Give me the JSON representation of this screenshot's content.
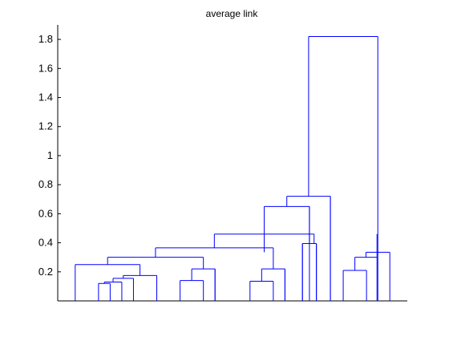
{
  "chart_data": {
    "type": "dendrogram",
    "title": "average link",
    "xlabel": "",
    "ylabel": "",
    "ylim": [
      0,
      1.9
    ],
    "y_ticks": [
      "0.2",
      "0.4",
      "0.6",
      "0.8",
      "1",
      "1.2",
      "1.4",
      "1.6",
      "1.8"
    ],
    "y_tick_values": [
      0.2,
      0.4,
      0.6,
      0.8,
      1.0,
      1.2,
      1.4,
      1.6,
      1.8
    ],
    "x_range": [
      0,
      30
    ],
    "leaves": [
      1.5,
      3.5,
      4.5,
      5.5,
      6.5,
      8.5,
      10.5,
      12.5,
      13.5,
      14.5,
      16.5,
      18.5,
      20.5,
      22.5,
      24.5,
      26.5,
      28.5
    ],
    "merges": [
      {
        "x1": 3.5,
        "x2": 4.5,
        "y": 0.12
      },
      {
        "x1": 4.0,
        "x2": 5.5,
        "y": 0.13
      },
      {
        "x1": 4.75,
        "x2": 6.5,
        "y": 0.155
      },
      {
        "x1": 5.625,
        "x2": 8.5,
        "y": 0.175
      },
      {
        "x1": 1.5,
        "x2": 7.06,
        "y": 0.25
      },
      {
        "x1": 10.5,
        "x2": 12.5,
        "y": 0.14
      },
      {
        "x1": 11.5,
        "x2": 13.5,
        "y": 0.22
      },
      {
        "x1": 4.28,
        "x2": 12.5,
        "y": 0.3
      },
      {
        "x1": 16.5,
        "x2": 18.5,
        "y": 0.135
      },
      {
        "x1": 17.5,
        "x2": 19.5,
        "y": 0.22
      },
      {
        "x1": 8.39,
        "x2": 18.5,
        "y": 0.365
      },
      {
        "x1": 21.0,
        "x2": 22.2,
        "y": 0.395
      },
      {
        "x1": 13.44,
        "x2": 22.0,
        "y": 0.46
      },
      {
        "x1": 24.5,
        "x2": 26.5,
        "y": 0.21
      },
      {
        "x1": 25.5,
        "x2": 27.4,
        "y": 0.3
      },
      {
        "x1": 26.45,
        "x2": 28.5,
        "y": 0.335
      },
      {
        "x1": 17.72,
        "x2": 21.6,
        "y": 0.65
      },
      {
        "x1": 19.66,
        "x2": 23.4,
        "y": 0.72
      },
      {
        "x1": 21.53,
        "x2": 27.47,
        "y": 1.82
      }
    ],
    "extra_stubs": [
      {
        "x": 13.5,
        "y0": 0.0,
        "y1": 0.22
      },
      {
        "x": 19.5,
        "y0": 0.0,
        "y1": 0.22
      },
      {
        "x": 21.0,
        "y0": 0.0,
        "y1": 0.395
      },
      {
        "x": 22.2,
        "y0": 0.0,
        "y1": 0.395
      },
      {
        "x": 27.4,
        "y0": 0.0,
        "y1": 0.3
      },
      {
        "x": 21.6,
        "y0": 0.395,
        "y1": 0.65
      },
      {
        "x": 23.4,
        "y0": 0.0,
        "y1": 0.72
      }
    ],
    "line_color": "#0000ff",
    "grid": false
  }
}
